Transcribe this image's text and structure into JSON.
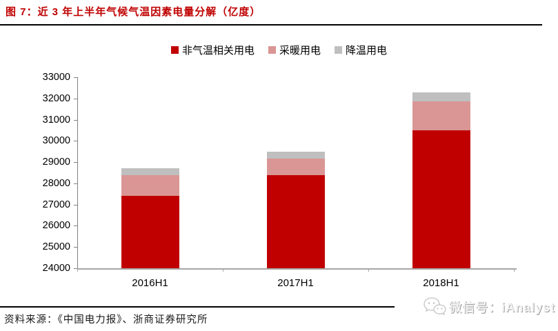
{
  "header": {
    "title": "图 7：近 3 年上半年气候气温因素电量分解（亿度）",
    "title_color": "#c00000"
  },
  "chart_data": {
    "type": "bar",
    "stacked": true,
    "title": "近 3 年上半年气候气温因素电量分解（亿度）",
    "categories": [
      "2016H1",
      "2017H1",
      "2018H1"
    ],
    "series": [
      {
        "name": "非气温相关用电",
        "color": "#c00000",
        "values": [
          27400,
          28400,
          30500
        ]
      },
      {
        "name": "采暖用电",
        "color": "#d99694",
        "values": [
          1000,
          750,
          1350
        ]
      },
      {
        "name": "降温用电",
        "color": "#bfbfbf",
        "values": [
          300,
          350,
          450
        ]
      }
    ],
    "stack_totals": [
      28700,
      29500,
      32300
    ],
    "xlabel": "",
    "ylabel": "",
    "ylim": [
      24000,
      33000
    ],
    "ytick_step": 1000,
    "ytick_labels": [
      "24000",
      "25000",
      "26000",
      "27000",
      "28000",
      "29000",
      "30000",
      "31000",
      "32000",
      "33000"
    ],
    "grid": false,
    "legend_position": "top",
    "axis_color": "#808080",
    "x_axis_color": "#a6a6a6"
  },
  "footer": {
    "source": "资料来源：《中国电力报》、浙商证券研究所",
    "wechat": "微信号：iAnalyst"
  }
}
